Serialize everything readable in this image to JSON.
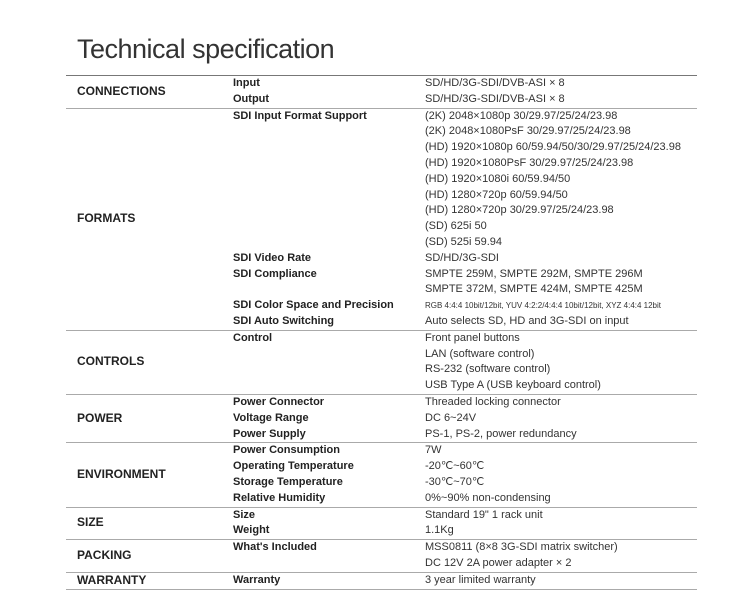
{
  "title": "Technical specification",
  "sections": [
    {
      "category": "CONNECTIONS",
      "rows": [
        {
          "label": "Input",
          "values": [
            "SD/HD/3G-SDI/DVB-ASI × 8"
          ]
        },
        {
          "label": "Output",
          "values": [
            "SD/HD/3G-SDI/DVB-ASI × 8"
          ]
        }
      ]
    },
    {
      "category": "FORMATS",
      "rows": [
        {
          "label": "SDI Input Format Support",
          "values": [
            "(2K) 2048×1080p 30/29.97/25/24/23.98",
            "(2K) 2048×1080PsF 30/29.97/25/24/23.98",
            "(HD) 1920×1080p 60/59.94/50/30/29.97/25/24/23.98",
            "(HD) 1920×1080PsF 30/29.97/25/24/23.98",
            "(HD) 1920×1080i 60/59.94/50",
            "(HD) 1280×720p 60/59.94/50",
            "(HD) 1280×720p 30/29.97/25/24/23.98",
            "(SD) 625i 50",
            "(SD) 525i 59.94"
          ]
        },
        {
          "label": "SDI Video Rate",
          "values": [
            "SD/HD/3G-SDI"
          ]
        },
        {
          "label": "SDI Compliance",
          "values": [
            "SMPTE 259M, SMPTE 292M, SMPTE 296M",
            "SMPTE 372M, SMPTE 424M, SMPTE 425M"
          ]
        },
        {
          "label": "SDI Color Space and Precision",
          "values": [
            "RGB 4:4:4 10bit/12bit, YUV 4:2:2/4:4:4 10bit/12bit, XYZ 4:4:4 12bit"
          ],
          "small": true
        },
        {
          "label": "SDI Auto Switching",
          "values": [
            "Auto selects SD, HD and 3G-SDI on input"
          ]
        }
      ]
    },
    {
      "category": "CONTROLS",
      "rows": [
        {
          "label": "Control",
          "values": [
            "Front panel buttons",
            "LAN (software control)",
            "RS-232 (software control)",
            "USB Type A (USB keyboard control)"
          ]
        }
      ]
    },
    {
      "category": "POWER",
      "rows": [
        {
          "label": "Power Connector",
          "values": [
            "Threaded locking connector"
          ]
        },
        {
          "label": "Voltage Range",
          "values": [
            "DC 6~24V"
          ]
        },
        {
          "label": "Power Supply",
          "values": [
            "PS-1, PS-2, power redundancy"
          ]
        }
      ]
    },
    {
      "category": "ENVIRONMENT",
      "rows": [
        {
          "label": "Power Consumption",
          "values": [
            "7W"
          ]
        },
        {
          "label": "Operating Temperature",
          "values": [
            "-20℃~60℃"
          ]
        },
        {
          "label": "Storage Temperature",
          "values": [
            "-30℃~70℃"
          ]
        },
        {
          "label": "Relative Humidity",
          "values": [
            "0%~90% non-condensing"
          ]
        }
      ]
    },
    {
      "category": "SIZE",
      "rows": [
        {
          "label": "Size",
          "values": [
            "Standard 19\" 1 rack unit"
          ]
        },
        {
          "label": "Weight",
          "values": [
            "1.1Kg"
          ]
        }
      ]
    },
    {
      "category": "PACKING",
      "rows": [
        {
          "label": "What's Included",
          "values": [
            "MSS0811 (8×8 3G-SDI matrix switcher)",
            "DC 12V 2A power adapter × 2"
          ]
        }
      ]
    },
    {
      "category": "WARRANTY",
      "rows": [
        {
          "label": "Warranty",
          "values": [
            "3 year limited warranty"
          ]
        }
      ]
    }
  ]
}
